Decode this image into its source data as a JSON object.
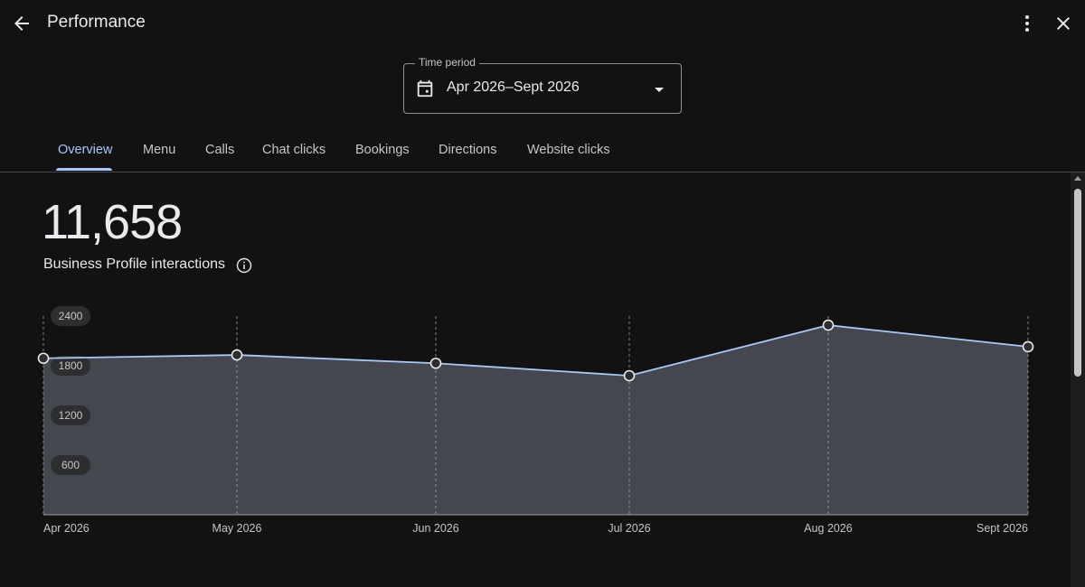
{
  "header": {
    "title": "Performance",
    "back_icon": "arrow-back-icon",
    "more_icon": "more-vert-icon",
    "close_icon": "close-icon"
  },
  "time_period": {
    "label": "Time period",
    "value": "Apr 2026–Sept 2026",
    "icon": "calendar-icon"
  },
  "tabs": [
    {
      "label": "Overview",
      "active": true
    },
    {
      "label": "Menu"
    },
    {
      "label": "Calls"
    },
    {
      "label": "Chat clicks"
    },
    {
      "label": "Bookings"
    },
    {
      "label": "Directions"
    },
    {
      "label": "Website clicks"
    }
  ],
  "metric": {
    "value": "11,658",
    "label": "Business Profile interactions",
    "info_icon": "info-icon"
  },
  "colors": {
    "accent": "#a8c7fa",
    "background": "#121212",
    "area_fill": "#44474e",
    "line": "#a8c7fa"
  },
  "chart_data": {
    "type": "area",
    "x": [
      "Apr 2026",
      "May 2026",
      "Jun 2026",
      "Jul 2026",
      "Aug 2026",
      "Sept 2026"
    ],
    "y_ticks": [
      "2400",
      "1800",
      "1200",
      "600"
    ],
    "series": [
      {
        "values": [
          1890,
          1930,
          1830,
          1680,
          2290,
          2030
        ]
      }
    ],
    "ylim": [
      0,
      2400
    ],
    "grid": "vertical-dashed"
  }
}
